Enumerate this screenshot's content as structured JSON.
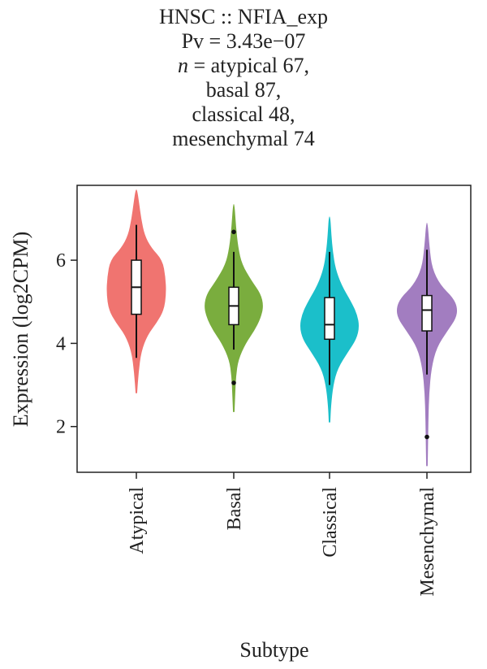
{
  "title": {
    "line1": "HNSC :: NFIA_exp",
    "line2": "Pv = 3.43e−07",
    "line3_prefix": "n",
    "line3_rest": " = atypical 67,",
    "line4": "basal 87,",
    "line5": "classical 48,",
    "line6": "mesenchymal 74"
  },
  "chart_data": {
    "type": "violin",
    "xlabel": "Subtype",
    "ylabel": "Expression (log2CPM)",
    "ylim": [
      0.9,
      7.8
    ],
    "yticks": [
      2,
      4,
      6
    ],
    "categories": [
      "Atypical",
      "Basal",
      "Classical",
      "Mesenchymal"
    ],
    "colors": [
      "#F07470",
      "#7AAD3E",
      "#1BBFCA",
      "#A27DC0"
    ],
    "violins": [
      {
        "name": "Atypical",
        "min": 2.8,
        "max": 7.7,
        "box": {
          "q1": 4.7,
          "median": 5.35,
          "q3": 6.0,
          "whisker_low": 3.65,
          "whisker_high": 6.85
        },
        "outliers": [],
        "density": [
          [
            2.8,
            0.02
          ],
          [
            3.3,
            0.06
          ],
          [
            3.8,
            0.13
          ],
          [
            4.2,
            0.3
          ],
          [
            4.5,
            0.55
          ],
          [
            4.8,
            0.74
          ],
          [
            5.2,
            0.8
          ],
          [
            5.6,
            0.78
          ],
          [
            6.0,
            0.7
          ],
          [
            6.3,
            0.4
          ],
          [
            6.6,
            0.22
          ],
          [
            7.0,
            0.13
          ],
          [
            7.4,
            0.07
          ],
          [
            7.7,
            0.02
          ]
        ]
      },
      {
        "name": "Basal",
        "min": 2.35,
        "max": 7.35,
        "box": {
          "q1": 4.45,
          "median": 4.9,
          "q3": 5.35,
          "whisker_low": 3.85,
          "whisker_high": 6.2
        },
        "outliers": [
          6.68,
          3.05
        ],
        "density": [
          [
            2.35,
            0.02
          ],
          [
            2.8,
            0.04
          ],
          [
            3.2,
            0.06
          ],
          [
            3.6,
            0.12
          ],
          [
            4.0,
            0.32
          ],
          [
            4.3,
            0.55
          ],
          [
            4.6,
            0.72
          ],
          [
            4.9,
            0.8
          ],
          [
            5.2,
            0.72
          ],
          [
            5.5,
            0.48
          ],
          [
            5.9,
            0.22
          ],
          [
            6.3,
            0.12
          ],
          [
            6.8,
            0.06
          ],
          [
            7.35,
            0.02
          ]
        ]
      },
      {
        "name": "Classical",
        "min": 2.1,
        "max": 7.05,
        "box": {
          "q1": 4.1,
          "median": 4.45,
          "q3": 5.1,
          "whisker_low": 3.0,
          "whisker_high": 6.2
        },
        "outliers": [],
        "density": [
          [
            2.1,
            0.02
          ],
          [
            2.5,
            0.04
          ],
          [
            3.0,
            0.1
          ],
          [
            3.4,
            0.22
          ],
          [
            3.8,
            0.5
          ],
          [
            4.1,
            0.72
          ],
          [
            4.4,
            0.8
          ],
          [
            4.7,
            0.74
          ],
          [
            5.0,
            0.58
          ],
          [
            5.4,
            0.32
          ],
          [
            5.8,
            0.16
          ],
          [
            6.2,
            0.09
          ],
          [
            6.6,
            0.05
          ],
          [
            7.05,
            0.02
          ]
        ]
      },
      {
        "name": "Mesenchymal",
        "min": 1.05,
        "max": 6.9,
        "box": {
          "q1": 4.3,
          "median": 4.8,
          "q3": 5.15,
          "whisker_low": 3.25,
          "whisker_high": 6.25
        },
        "outliers": [
          1.75
        ],
        "density": [
          [
            1.05,
            0.02
          ],
          [
            1.6,
            0.03
          ],
          [
            2.2,
            0.04
          ],
          [
            2.8,
            0.06
          ],
          [
            3.4,
            0.12
          ],
          [
            3.9,
            0.26
          ],
          [
            4.3,
            0.55
          ],
          [
            4.6,
            0.78
          ],
          [
            4.85,
            0.82
          ],
          [
            5.1,
            0.7
          ],
          [
            5.4,
            0.36
          ],
          [
            5.8,
            0.14
          ],
          [
            6.3,
            0.07
          ],
          [
            6.9,
            0.02
          ]
        ]
      }
    ]
  }
}
